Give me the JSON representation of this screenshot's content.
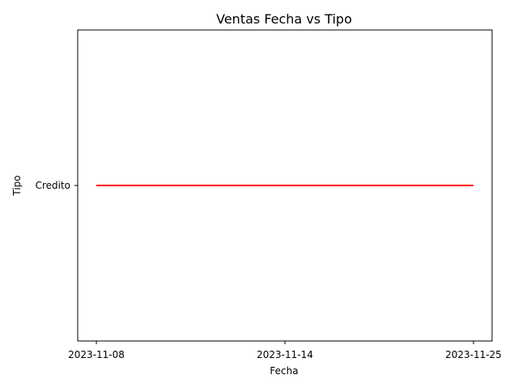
{
  "chart_data": {
    "type": "line",
    "title": "Ventas Fecha vs Tipo",
    "xlabel": "Fecha",
    "ylabel": "Tipo",
    "x_type": "categorical",
    "y_type": "categorical",
    "x": [
      "2023-11-08",
      "2023-11-14",
      "2023-11-25"
    ],
    "y": [
      "Credito",
      "Credito",
      "Credito"
    ],
    "x_ticks": [
      "2023-11-08",
      "2023-11-14",
      "2023-11-25"
    ],
    "y_ticks": [
      "Credito"
    ],
    "series": [
      {
        "x": [
          "2023-11-08",
          "2023-11-14",
          "2023-11-25"
        ],
        "y": [
          "Credito",
          "Credito",
          "Credito"
        ],
        "color": "#ff0000"
      }
    ],
    "grid": false,
    "legend": "none"
  }
}
